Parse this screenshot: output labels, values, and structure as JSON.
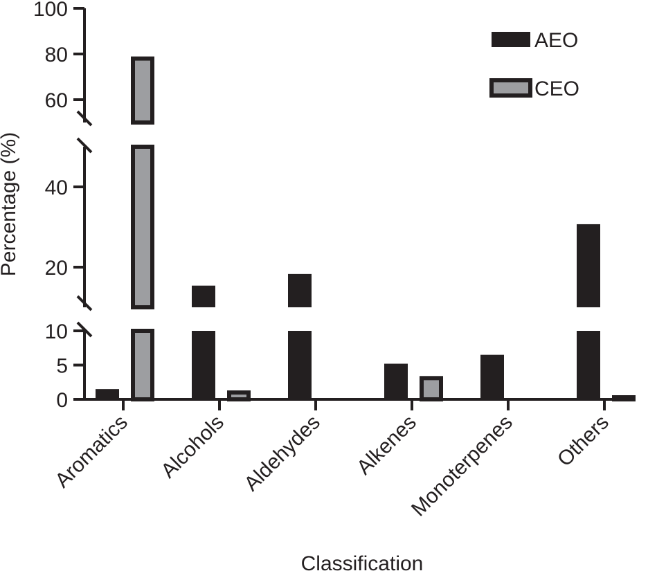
{
  "chart_data": {
    "type": "bar",
    "title": "",
    "xlabel": "Classification",
    "ylabel": "Percentage (%)",
    "categories": [
      "Aromatics",
      "Alcohols",
      "Aldehydes",
      "Alkenes",
      "Monoterpenes",
      "Others"
    ],
    "series": [
      {
        "name": "AEO",
        "color": "#231f20",
        "values": [
          1.5,
          15.4,
          18.3,
          5.2,
          6.5,
          30.7
        ]
      },
      {
        "name": "CEO",
        "color": "#9d9ea1",
        "values": [
          78.0,
          1.0,
          0,
          3.1,
          0,
          0.2
        ]
      }
    ],
    "y_axis_segments": [
      {
        "range": [
          0,
          10
        ],
        "ticks": [
          0,
          5,
          10
        ]
      },
      {
        "range": [
          10,
          50
        ],
        "ticks": [
          20,
          40
        ]
      },
      {
        "range": [
          50,
          100
        ],
        "ticks": [
          60,
          80,
          100
        ]
      }
    ],
    "ylim": [
      0,
      100
    ],
    "grid": false,
    "legend_position": "top-right"
  }
}
